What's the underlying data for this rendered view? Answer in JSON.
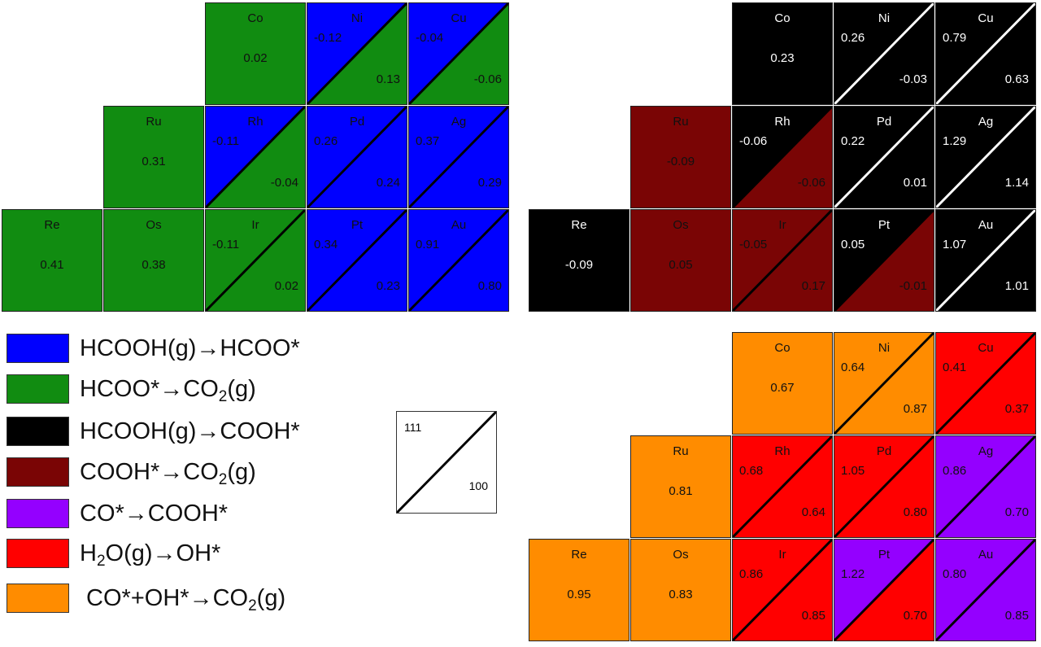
{
  "colors": {
    "HCOOH_to_HCOO": "#0000ff",
    "HCOO_to_CO2": "#118c11",
    "HCOOH_to_COOH": "#000000",
    "COOH_to_CO2": "#7a0505",
    "CO_to_COOH": "#9400ff",
    "H2O_to_OH": "#ff0000",
    "CO_OH_to_CO2": "#ff8c00"
  },
  "legend": [
    {
      "color": "HCOOH_to_HCOO",
      "parts": [
        "HCOOH(g)→HCOO*"
      ]
    },
    {
      "color": "HCOO_to_CO2",
      "parts": [
        "HCOO*→CO",
        "2",
        "(g)"
      ]
    },
    {
      "color": "HCOOH_to_COOH",
      "parts": [
        "HCOOH(g)→COOH*"
      ]
    },
    {
      "color": "COOH_to_CO2",
      "parts": [
        "COOH*→CO",
        "2",
        "(g)"
      ]
    },
    {
      "color": "CO_to_COOH",
      "parts": [
        "CO*→COOH*"
      ]
    },
    {
      "color": "H2O_to_OH",
      "parts": [
        "H",
        "2",
        "O(g)→OH*"
      ]
    },
    {
      "color": "CO_OH_to_CO2",
      "parts": [
        " CO*+OH*→CO",
        "2",
        "(g)"
      ]
    }
  ],
  "facet_key": {
    "top_left": "111",
    "bottom_right": "100"
  },
  "grids": [
    {
      "id": "grid-1",
      "cells": [
        {
          "el": "Co",
          "row": 0,
          "col": 2,
          "split": false,
          "value": "0.02",
          "color": "HCOO_to_CO2"
        },
        {
          "el": "Ni",
          "row": 0,
          "col": 3,
          "split": true,
          "v111": "-0.12",
          "v100": "0.13",
          "c111": "HCOOH_to_HCOO",
          "c100": "HCOO_to_CO2"
        },
        {
          "el": "Cu",
          "row": 0,
          "col": 4,
          "split": true,
          "v111": "-0.04",
          "v100": "-0.06",
          "c111": "HCOOH_to_HCOO",
          "c100": "HCOO_to_CO2"
        },
        {
          "el": "Ru",
          "row": 1,
          "col": 1,
          "split": false,
          "value": "0.31",
          "color": "HCOO_to_CO2"
        },
        {
          "el": "Rh",
          "row": 1,
          "col": 2,
          "split": true,
          "v111": "-0.11",
          "v100": "-0.04",
          "c111": "HCOOH_to_HCOO",
          "c100": "HCOO_to_CO2"
        },
        {
          "el": "Pd",
          "row": 1,
          "col": 3,
          "split": true,
          "v111": "0.26",
          "v100": "0.24",
          "c111": "HCOOH_to_HCOO",
          "c100": "HCOOH_to_HCOO"
        },
        {
          "el": "Ag",
          "row": 1,
          "col": 4,
          "split": true,
          "v111": "0.37",
          "v100": "0.29",
          "c111": "HCOOH_to_HCOO",
          "c100": "HCOOH_to_HCOO"
        },
        {
          "el": "Re",
          "row": 2,
          "col": 0,
          "split": false,
          "value": "0.41",
          "color": "HCOO_to_CO2"
        },
        {
          "el": "Os",
          "row": 2,
          "col": 1,
          "split": false,
          "value": "0.38",
          "color": "HCOO_to_CO2"
        },
        {
          "el": "Ir",
          "row": 2,
          "col": 2,
          "split": true,
          "v111": "-0.11",
          "v100": "0.02",
          "c111": "HCOO_to_CO2",
          "c100": "HCOO_to_CO2"
        },
        {
          "el": "Pt",
          "row": 2,
          "col": 3,
          "split": true,
          "v111": "0.34",
          "v100": "0.23",
          "c111": "HCOOH_to_HCOO",
          "c100": "HCOOH_to_HCOO"
        },
        {
          "el": "Au",
          "row": 2,
          "col": 4,
          "split": true,
          "v111": "0.91",
          "v100": "0.80",
          "c111": "HCOOH_to_HCOO",
          "c100": "HCOOH_to_HCOO"
        }
      ]
    },
    {
      "id": "grid-2",
      "cells": [
        {
          "el": "Co",
          "row": 0,
          "col": 2,
          "split": false,
          "value": "0.23",
          "color": "HCOOH_to_COOH"
        },
        {
          "el": "Ni",
          "row": 0,
          "col": 3,
          "split": true,
          "v111": "0.26",
          "v100": "-0.03",
          "c111": "HCOOH_to_COOH",
          "c100": "HCOOH_to_COOH"
        },
        {
          "el": "Cu",
          "row": 0,
          "col": 4,
          "split": true,
          "v111": "0.79",
          "v100": "0.63",
          "c111": "HCOOH_to_COOH",
          "c100": "HCOOH_to_COOH"
        },
        {
          "el": "Ru",
          "row": 1,
          "col": 1,
          "split": false,
          "value": "-0.09",
          "color": "COOH_to_CO2"
        },
        {
          "el": "Rh",
          "row": 1,
          "col": 2,
          "split": true,
          "v111": "-0.06",
          "v100": "-0.06",
          "c111": "HCOOH_to_COOH",
          "c100": "COOH_to_CO2"
        },
        {
          "el": "Pd",
          "row": 1,
          "col": 3,
          "split": true,
          "v111": "0.22",
          "v100": "0.01",
          "c111": "HCOOH_to_COOH",
          "c100": "HCOOH_to_COOH"
        },
        {
          "el": "Ag",
          "row": 1,
          "col": 4,
          "split": true,
          "v111": "1.29",
          "v100": "1.14",
          "c111": "HCOOH_to_COOH",
          "c100": "HCOOH_to_COOH"
        },
        {
          "el": "Re",
          "row": 2,
          "col": 0,
          "split": false,
          "value": "-0.09",
          "color": "HCOOH_to_COOH"
        },
        {
          "el": "Os",
          "row": 2,
          "col": 1,
          "split": false,
          "value": "0.05",
          "color": "COOH_to_CO2"
        },
        {
          "el": "Ir",
          "row": 2,
          "col": 2,
          "split": true,
          "v111": "-0.05",
          "v100": "0.17",
          "c111": "COOH_to_CO2",
          "c100": "COOH_to_CO2"
        },
        {
          "el": "Pt",
          "row": 2,
          "col": 3,
          "split": true,
          "v111": "0.05",
          "v100": "-0.01",
          "c111": "HCOOH_to_COOH",
          "c100": "COOH_to_CO2"
        },
        {
          "el": "Au",
          "row": 2,
          "col": 4,
          "split": true,
          "v111": "1.07",
          "v100": "1.01",
          "c111": "HCOOH_to_COOH",
          "c100": "HCOOH_to_COOH"
        }
      ]
    },
    {
      "id": "grid-3",
      "cells": [
        {
          "el": "Co",
          "row": 0,
          "col": 2,
          "split": false,
          "value": "0.67",
          "color": "CO_OH_to_CO2"
        },
        {
          "el": "Ni",
          "row": 0,
          "col": 3,
          "split": true,
          "v111": "0.64",
          "v100": "0.87",
          "c111": "CO_OH_to_CO2",
          "c100": "CO_OH_to_CO2"
        },
        {
          "el": "Cu",
          "row": 0,
          "col": 4,
          "split": true,
          "v111": "0.41",
          "v100": "0.37",
          "c111": "H2O_to_OH",
          "c100": "H2O_to_OH"
        },
        {
          "el": "Ru",
          "row": 1,
          "col": 1,
          "split": false,
          "value": "0.81",
          "color": "CO_OH_to_CO2"
        },
        {
          "el": "Rh",
          "row": 1,
          "col": 2,
          "split": true,
          "v111": "0.68",
          "v100": "0.64",
          "c111": "H2O_to_OH",
          "c100": "H2O_to_OH"
        },
        {
          "el": "Pd",
          "row": 1,
          "col": 3,
          "split": true,
          "v111": "1.05",
          "v100": "0.80",
          "c111": "H2O_to_OH",
          "c100": "H2O_to_OH"
        },
        {
          "el": "Ag",
          "row": 1,
          "col": 4,
          "split": true,
          "v111": "0.86",
          "v100": "0.70",
          "c111": "CO_to_COOH",
          "c100": "CO_to_COOH"
        },
        {
          "el": "Re",
          "row": 2,
          "col": 0,
          "split": false,
          "value": "0.95",
          "color": "CO_OH_to_CO2"
        },
        {
          "el": "Os",
          "row": 2,
          "col": 1,
          "split": false,
          "value": "0.83",
          "color": "CO_OH_to_CO2"
        },
        {
          "el": "Ir",
          "row": 2,
          "col": 2,
          "split": true,
          "v111": "0.86",
          "v100": "0.85",
          "c111": "H2O_to_OH",
          "c100": "H2O_to_OH"
        },
        {
          "el": "Pt",
          "row": 2,
          "col": 3,
          "split": true,
          "v111": "1.22",
          "v100": "0.70",
          "c111": "CO_to_COOH",
          "c100": "H2O_to_OH"
        },
        {
          "el": "Au",
          "row": 2,
          "col": 4,
          "split": true,
          "v111": "0.80",
          "v100": "0.85",
          "c111": "CO_to_COOH",
          "c100": "CO_to_COOH"
        }
      ]
    }
  ]
}
